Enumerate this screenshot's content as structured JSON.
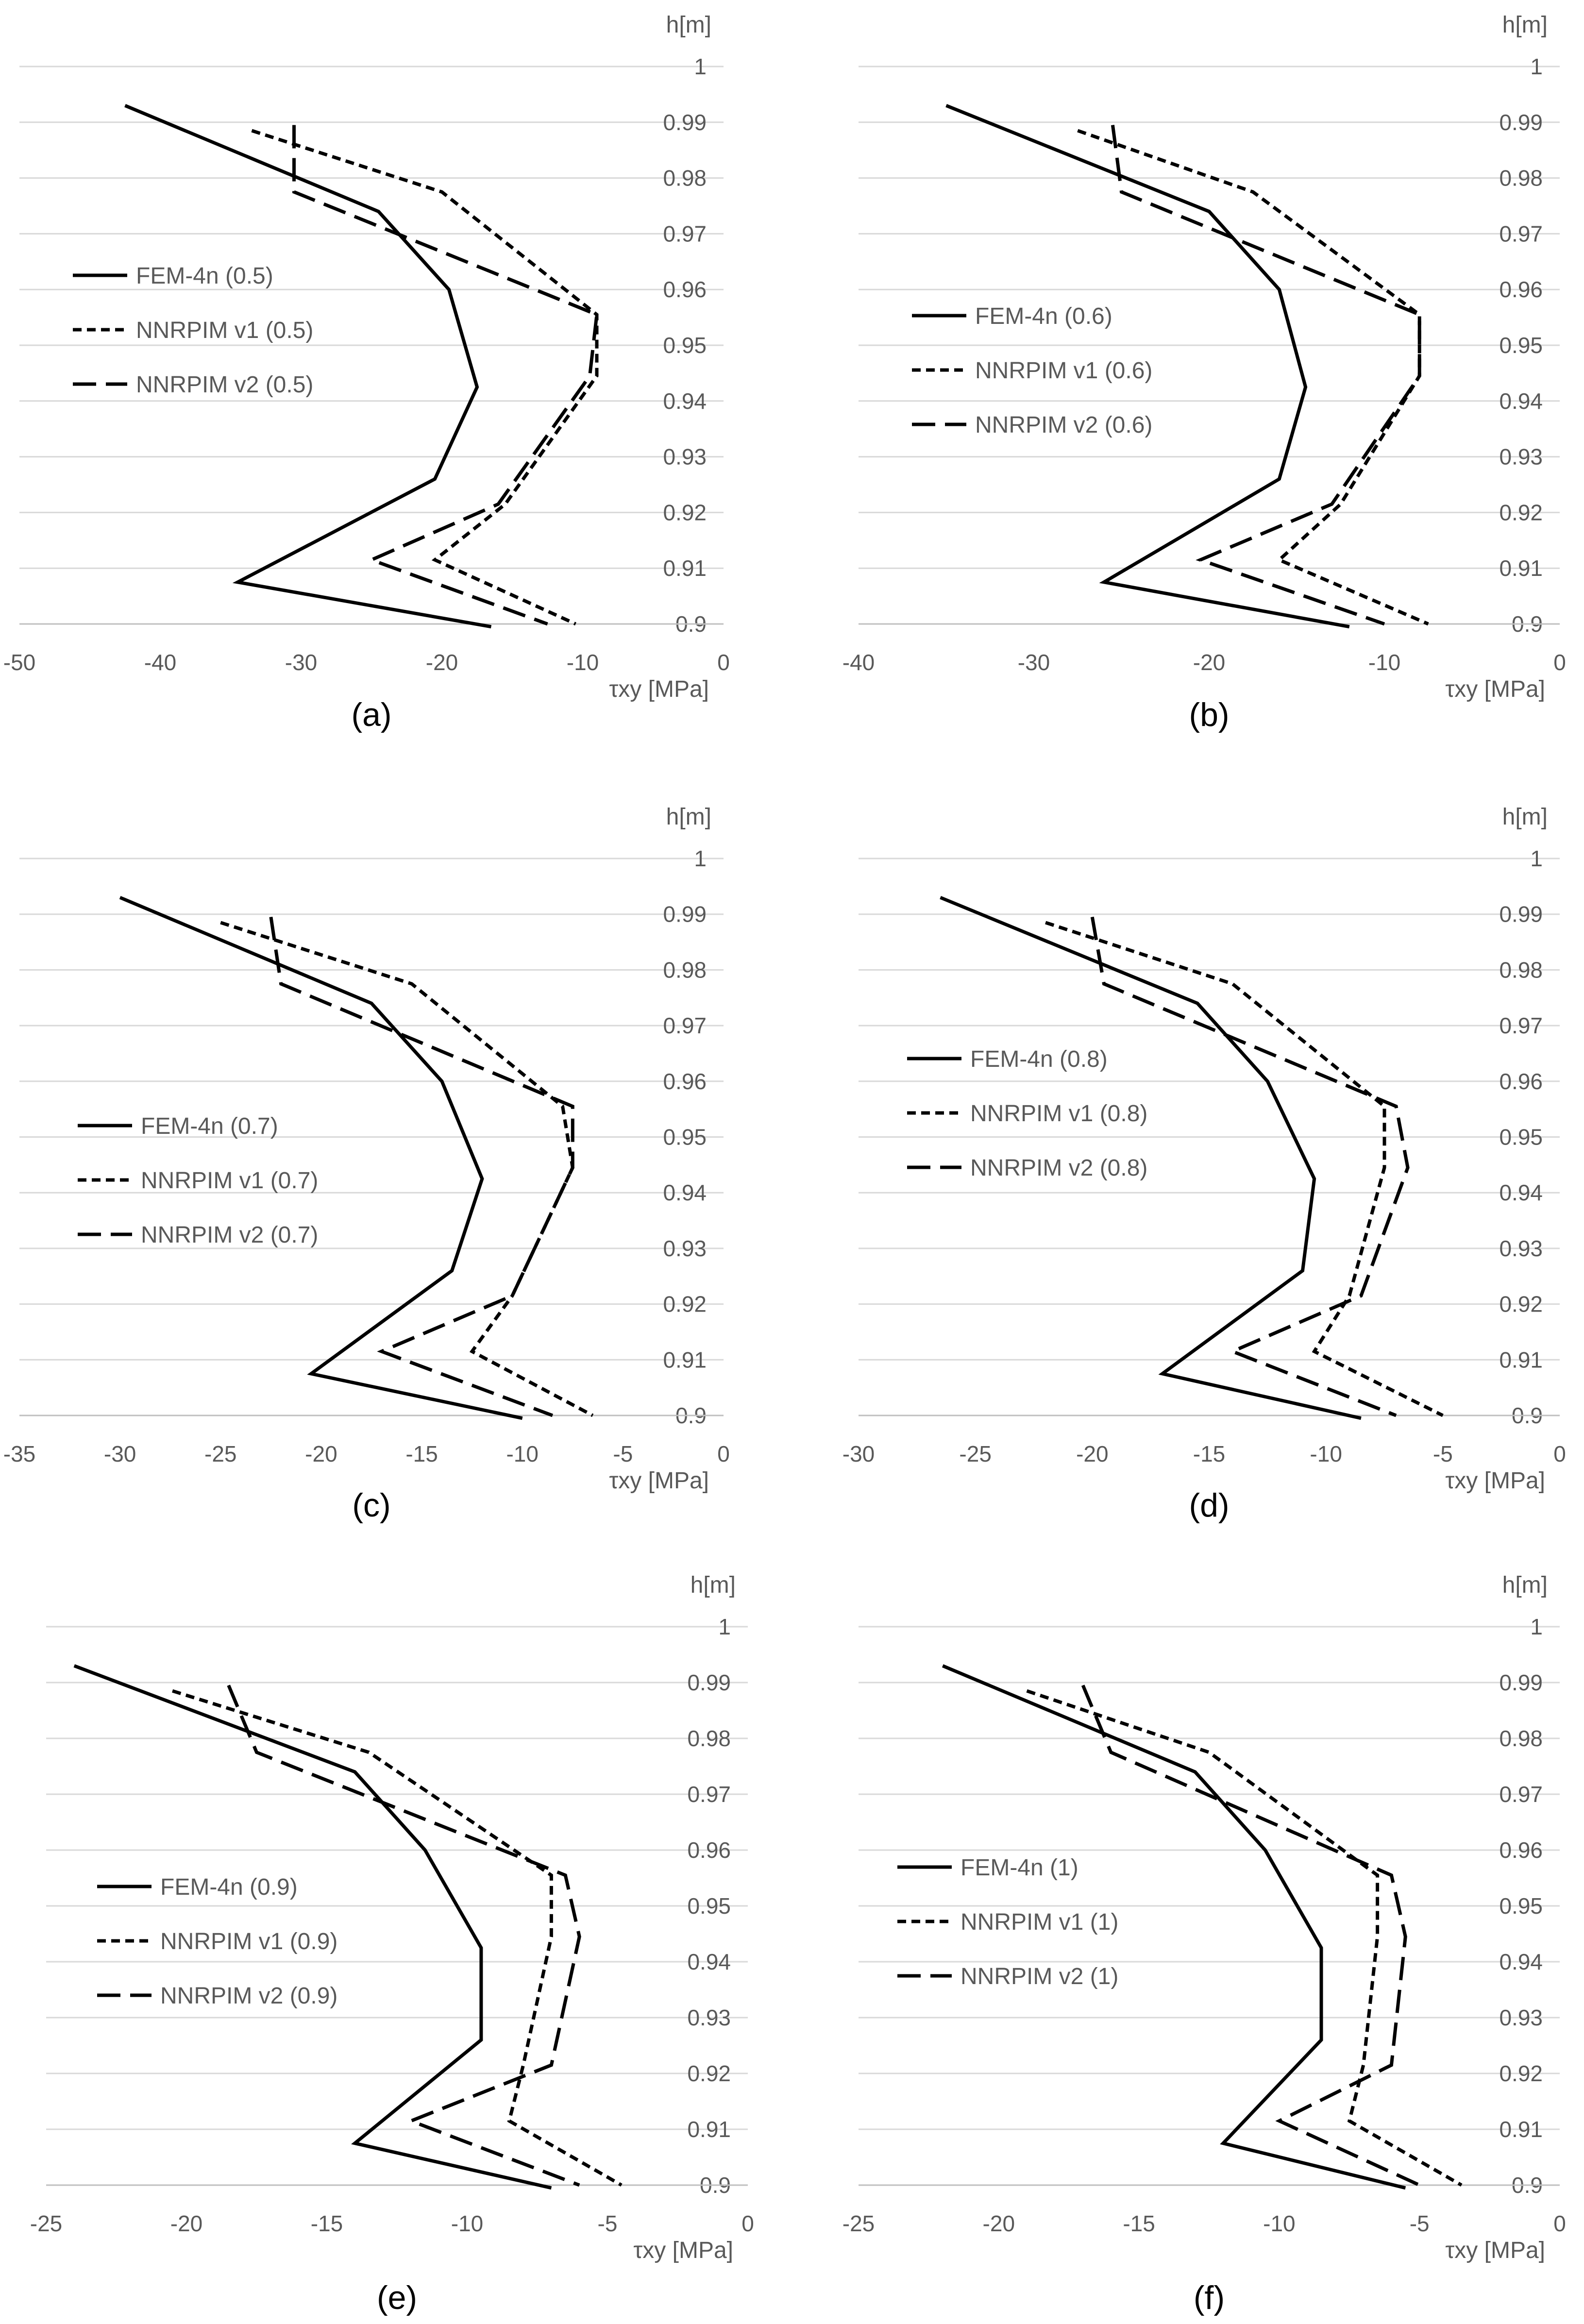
{
  "chart_data": [
    {
      "type": "line",
      "caption": "(a)",
      "xlabel": "τxy [MPa]",
      "ylabel": "h[m]",
      "xlim": [
        -50,
        0
      ],
      "xticks": [
        -50,
        -40,
        -30,
        -20,
        -10,
        0
      ],
      "ylim": [
        0.9,
        1.0
      ],
      "yticks": [
        0.9,
        0.91,
        0.92,
        0.93,
        0.94,
        0.95,
        0.96,
        0.97,
        0.98,
        0.99,
        1
      ],
      "series": [
        {
          "name": "FEM-4n (0.5)",
          "style": "solid",
          "points": [
            [
              -42.5,
              0.993
            ],
            [
              -24.5,
              0.974
            ],
            [
              -19.5,
              0.96
            ],
            [
              -17.5,
              0.9425
            ],
            [
              -20.5,
              0.926
            ],
            [
              -34.5,
              0.9075
            ],
            [
              -16.5,
              0.8995
            ]
          ]
        },
        {
          "name": "NNRPIM v1 (0.5)",
          "style": "dotted",
          "points": [
            [
              -33.5,
              0.9885
            ],
            [
              -20,
              0.9775
            ],
            [
              -9,
              0.9555
            ],
            [
              -9,
              0.9445
            ],
            [
              -15.5,
              0.9215
            ],
            [
              -20.5,
              0.9115
            ],
            [
              -10.5,
              0.9
            ]
          ]
        },
        {
          "name": "NNRPIM v2 (0.5)",
          "style": "dashed",
          "points": [
            [
              -30.5,
              0.9895
            ],
            [
              -30.5,
              0.9775
            ],
            [
              -9,
              0.9555
            ],
            [
              -9.5,
              0.9445
            ],
            [
              -16,
              0.9215
            ],
            [
              -25,
              0.9115
            ],
            [
              -12.5,
              0.9
            ]
          ]
        }
      ]
    },
    {
      "type": "line",
      "caption": "(b)",
      "xlabel": "τxy [MPa]",
      "ylabel": "h[m]",
      "xlim": [
        -40,
        0
      ],
      "xticks": [
        -40,
        -30,
        -20,
        -10,
        0
      ],
      "ylim": [
        0.9,
        1.0
      ],
      "yticks": [
        0.9,
        0.91,
        0.92,
        0.93,
        0.94,
        0.95,
        0.96,
        0.97,
        0.98,
        0.99,
        1
      ],
      "series": [
        {
          "name": "FEM-4n (0.6)",
          "style": "solid",
          "points": [
            [
              -35,
              0.993
            ],
            [
              -20,
              0.974
            ],
            [
              -16,
              0.96
            ],
            [
              -14.5,
              0.9425
            ],
            [
              -16,
              0.926
            ],
            [
              -26,
              0.9075
            ],
            [
              -12,
              0.8995
            ]
          ]
        },
        {
          "name": "NNRPIM v1 (0.6)",
          "style": "dotted",
          "points": [
            [
              -27.5,
              0.9885
            ],
            [
              -17.5,
              0.9775
            ],
            [
              -8,
              0.9555
            ],
            [
              -8,
              0.9445
            ],
            [
              -12.5,
              0.9215
            ],
            [
              -16,
              0.9115
            ],
            [
              -7.5,
              0.9
            ]
          ]
        },
        {
          "name": "NNRPIM v2 (0.6)",
          "style": "dashed",
          "points": [
            [
              -25.5,
              0.9895
            ],
            [
              -25,
              0.9775
            ],
            [
              -8,
              0.9555
            ],
            [
              -8,
              0.9445
            ],
            [
              -13,
              0.9215
            ],
            [
              -20.5,
              0.9115
            ],
            [
              -10,
              0.9
            ]
          ]
        }
      ]
    },
    {
      "type": "line",
      "caption": "(c)",
      "xlabel": "τxy [MPa]",
      "ylabel": "h[m]",
      "xlim": [
        -35,
        0
      ],
      "xticks": [
        -35,
        -30,
        -25,
        -20,
        -15,
        -10,
        -5,
        0
      ],
      "ylim": [
        0.9,
        1.0
      ],
      "yticks": [
        0.9,
        0.91,
        0.92,
        0.93,
        0.94,
        0.95,
        0.96,
        0.97,
        0.98,
        0.99,
        1
      ],
      "series": [
        {
          "name": "FEM-4n (0.7)",
          "style": "solid",
          "points": [
            [
              -30,
              0.993
            ],
            [
              -17.5,
              0.974
            ],
            [
              -14,
              0.96
            ],
            [
              -12,
              0.9425
            ],
            [
              -13.5,
              0.926
            ],
            [
              -20.5,
              0.9075
            ],
            [
              -10,
              0.8995
            ]
          ]
        },
        {
          "name": "NNRPIM v1 (0.7)",
          "style": "dotted",
          "points": [
            [
              -25,
              0.9885
            ],
            [
              -15.5,
              0.9775
            ],
            [
              -8,
              0.9555
            ],
            [
              -7.5,
              0.9445
            ],
            [
              -10.5,
              0.9215
            ],
            [
              -12.5,
              0.9115
            ],
            [
              -6.5,
              0.9
            ]
          ]
        },
        {
          "name": "NNRPIM v2 (0.7)",
          "style": "dashed",
          "points": [
            [
              -22.5,
              0.9895
            ],
            [
              -22,
              0.9775
            ],
            [
              -7.5,
              0.9555
            ],
            [
              -7.5,
              0.9445
            ],
            [
              -10.5,
              0.9215
            ],
            [
              -17,
              0.9115
            ],
            [
              -8.5,
              0.9
            ]
          ]
        }
      ]
    },
    {
      "type": "line",
      "caption": "(d)",
      "xlabel": "τxy [MPa]",
      "ylabel": "h[m]",
      "xlim": [
        -30,
        0
      ],
      "xticks": [
        -30,
        -25,
        -20,
        -15,
        -10,
        -5,
        0
      ],
      "ylim": [
        0.9,
        1.0
      ],
      "yticks": [
        0.9,
        0.91,
        0.92,
        0.93,
        0.94,
        0.95,
        0.96,
        0.97,
        0.98,
        0.99,
        1
      ],
      "series": [
        {
          "name": "FEM-4n (0.8)",
          "style": "solid",
          "points": [
            [
              -26.5,
              0.993
            ],
            [
              -15.5,
              0.974
            ],
            [
              -12.5,
              0.96
            ],
            [
              -10.5,
              0.9425
            ],
            [
              -11,
              0.926
            ],
            [
              -17,
              0.9075
            ],
            [
              -8.5,
              0.8995
            ]
          ]
        },
        {
          "name": "NNRPIM v1 (0.8)",
          "style": "dotted",
          "points": [
            [
              -22,
              0.9885
            ],
            [
              -14,
              0.9775
            ],
            [
              -7.5,
              0.9555
            ],
            [
              -7.5,
              0.9445
            ],
            [
              -9,
              0.9215
            ],
            [
              -10.5,
              0.9115
            ],
            [
              -5,
              0.9
            ]
          ]
        },
        {
          "name": "NNRPIM v2 (0.8)",
          "style": "dashed",
          "points": [
            [
              -20,
              0.9895
            ],
            [
              -19.5,
              0.9775
            ],
            [
              -7,
              0.9555
            ],
            [
              -6.5,
              0.9445
            ],
            [
              -8.5,
              0.9215
            ],
            [
              -14,
              0.9115
            ],
            [
              -7,
              0.9
            ]
          ]
        }
      ]
    },
    {
      "type": "line",
      "caption": "(e)",
      "xlabel": "τxy [MPa]",
      "ylabel": "h[m]",
      "xlim": [
        -25,
        0
      ],
      "xticks": [
        -25,
        -20,
        -15,
        -10,
        -5,
        0
      ],
      "ylim": [
        0.9,
        1.0
      ],
      "yticks": [
        0.9,
        0.91,
        0.92,
        0.93,
        0.94,
        0.95,
        0.96,
        0.97,
        0.98,
        0.99,
        1
      ],
      "series": [
        {
          "name": "FEM-4n (0.9)",
          "style": "solid",
          "points": [
            [
              -24,
              0.993
            ],
            [
              -14,
              0.974
            ],
            [
              -11.5,
              0.96
            ],
            [
              -9.5,
              0.9425
            ],
            [
              -9.5,
              0.926
            ],
            [
              -14,
              0.9075
            ],
            [
              -7,
              0.8995
            ]
          ]
        },
        {
          "name": "NNRPIM v1 (0.9)",
          "style": "dotted",
          "points": [
            [
              -20.5,
              0.9885
            ],
            [
              -13.5,
              0.9775
            ],
            [
              -7,
              0.9555
            ],
            [
              -7,
              0.9445
            ],
            [
              -8,
              0.9215
            ],
            [
              -8.5,
              0.9115
            ],
            [
              -4.5,
              0.9
            ]
          ]
        },
        {
          "name": "NNRPIM v2 (0.9)",
          "style": "dashed",
          "points": [
            [
              -18.5,
              0.9895
            ],
            [
              -17.5,
              0.9775
            ],
            [
              -6.5,
              0.9555
            ],
            [
              -6,
              0.9445
            ],
            [
              -7,
              0.9215
            ],
            [
              -12,
              0.9115
            ],
            [
              -6,
              0.9
            ]
          ]
        }
      ]
    },
    {
      "type": "line",
      "caption": "(f)",
      "xlabel": "τxy [MPa]",
      "ylabel": "h[m]",
      "xlim": [
        -25,
        0
      ],
      "xticks": [
        -25,
        -20,
        -15,
        -10,
        -5,
        0
      ],
      "ylim": [
        0.9,
        1.0
      ],
      "yticks": [
        0.9,
        0.91,
        0.92,
        0.93,
        0.94,
        0.95,
        0.96,
        0.97,
        0.98,
        0.99,
        1
      ],
      "series": [
        {
          "name": "FEM-4n (1)",
          "style": "solid",
          "points": [
            [
              -22,
              0.993
            ],
            [
              -13,
              0.974
            ],
            [
              -10.5,
              0.96
            ],
            [
              -8.5,
              0.9425
            ],
            [
              -8.5,
              0.926
            ],
            [
              -12,
              0.9075
            ],
            [
              -5.5,
              0.8995
            ]
          ]
        },
        {
          "name": "NNRPIM v1 (1)",
          "style": "dotted",
          "points": [
            [
              -19,
              0.9885
            ],
            [
              -12.5,
              0.9775
            ],
            [
              -6.5,
              0.9555
            ],
            [
              -6.5,
              0.9445
            ],
            [
              -7,
              0.9215
            ],
            [
              -7.5,
              0.9115
            ],
            [
              -3.5,
              0.9
            ]
          ]
        },
        {
          "name": "NNRPIM v2 (1)",
          "style": "dashed",
          "points": [
            [
              -17,
              0.9895
            ],
            [
              -16,
              0.9775
            ],
            [
              -6,
              0.9555
            ],
            [
              -5.5,
              0.9445
            ],
            [
              -6,
              0.9215
            ],
            [
              -10,
              0.9115
            ],
            [
              -5,
              0.9
            ]
          ]
        }
      ]
    }
  ]
}
